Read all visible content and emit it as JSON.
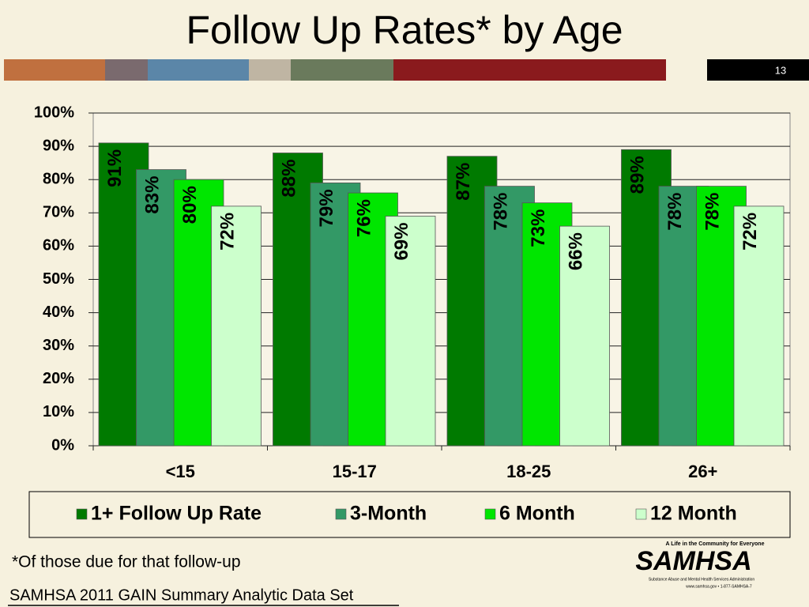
{
  "slide": {
    "title": "Follow Up Rates* by Age",
    "number": "13",
    "footnote": "*Of those due for that follow-up",
    "source": "SAMHSA 2011 GAIN Summary Analytic Data Set",
    "logo": {
      "tagline": "A Life in the Community for Everyone",
      "name": "SAMHSA",
      "agency": "Substance Abuse and Mental Health Services Administration",
      "contact": "www.samhsa.gov • 1-877-SAMHSA-7"
    }
  },
  "chart_data": {
    "type": "bar",
    "categories": [
      "<15",
      "15-17",
      "18-25",
      "26+"
    ],
    "series": [
      {
        "name": "1+ Follow Up Rate",
        "color": "#007a00",
        "values": [
          91,
          88,
          87,
          89
        ],
        "value_labels": [
          "91%",
          "88%",
          "87%",
          "89%"
        ]
      },
      {
        "name": "3-Month",
        "color": "#339966",
        "values": [
          83,
          79,
          78,
          78
        ],
        "value_labels": [
          "83%",
          "79%",
          "78%",
          "78%"
        ]
      },
      {
        "name": "6 Month",
        "color": "#00e600",
        "values": [
          80,
          76,
          73,
          78
        ],
        "value_labels": [
          "80%",
          "76%",
          "73%",
          "78%"
        ]
      },
      {
        "name": "12 Month",
        "color": "#ccffcc",
        "values": [
          72,
          69,
          66,
          72
        ],
        "value_labels": [
          "72%",
          "69%",
          "66%",
          "72%"
        ]
      }
    ],
    "ylim": [
      0,
      100
    ],
    "yticks": [
      {
        "value": 0,
        "label": "0%"
      },
      {
        "value": 10,
        "label": "10%"
      },
      {
        "value": 20,
        "label": "20%"
      },
      {
        "value": 30,
        "label": "30%"
      },
      {
        "value": 40,
        "label": "40%"
      },
      {
        "value": 50,
        "label": "50%"
      },
      {
        "value": 60,
        "label": "60%"
      },
      {
        "value": 70,
        "label": "70%"
      },
      {
        "value": 80,
        "label": "80%"
      },
      {
        "value": 90,
        "label": "90%"
      },
      {
        "value": 100,
        "label": "100%"
      }
    ],
    "grid": true,
    "legend": "bottom"
  }
}
